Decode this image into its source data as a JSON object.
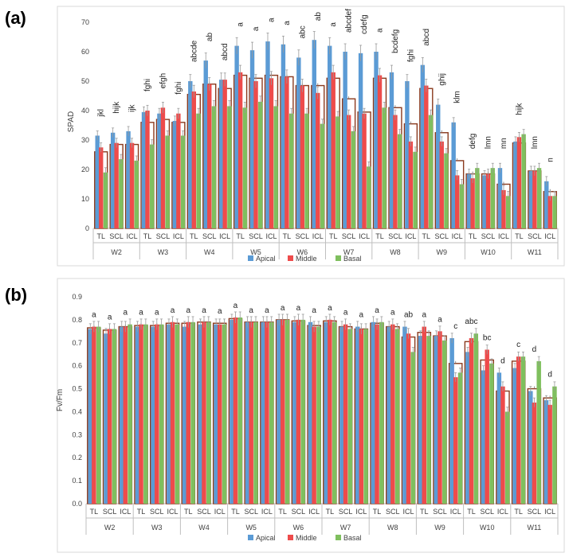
{
  "colors": {
    "apical": "#5b9bd5",
    "middle": "#ee4b4b",
    "basal": "#7fbf5e",
    "mean_box": "#8b3a1e",
    "axis": "#bfbfbf"
  },
  "chart_data": [
    {
      "type": "bar",
      "panel_label": "(a)",
      "ylabel": "SPAD",
      "ylim": [
        0,
        70
      ],
      "yticks": [
        0,
        10,
        20,
        30,
        40,
        50,
        60,
        70
      ],
      "groups": [
        "W2",
        "W3",
        "W4",
        "W5",
        "W6",
        "W7",
        "W8",
        "W9",
        "W10",
        "W11"
      ],
      "subcategories": [
        "TL",
        "SCL",
        "ICL"
      ],
      "legend": [
        "Apical",
        "Middle",
        "Basal"
      ],
      "series": [
        {
          "name": "Apical",
          "values": [
            31.5,
            32.5,
            33.0,
            39.5,
            39.0,
            36.5,
            50.0,
            57.0,
            50.5,
            62.0,
            60.5,
            63.5,
            62.5,
            58.0,
            64.0,
            62.0,
            60.0,
            59.5,
            60.0,
            53.0,
            50.0,
            55.5,
            42.0,
            36.0,
            18.5,
            18.0,
            20.5,
            29.5,
            19.5,
            16.0
          ]
        },
        {
          "name": "Middle",
          "values": [
            27.5,
            29.0,
            29.0,
            40.0,
            41.0,
            39.0,
            46.5,
            49.0,
            50.5,
            53.0,
            50.0,
            51.0,
            51.5,
            48.5,
            46.0,
            53.0,
            38.5,
            39.0,
            52.0,
            38.5,
            29.5,
            48.5,
            29.5,
            18.0,
            17.0,
            18.5,
            13.0,
            31.0,
            19.5,
            11.0
          ]
        },
        {
          "name": "Basal",
          "values": [
            19.0,
            23.5,
            23.0,
            28.5,
            31.5,
            31.5,
            39.0,
            41.5,
            41.5,
            41.0,
            43.0,
            41.5,
            39.0,
            39.0,
            35.5,
            38.0,
            33.0,
            21.0,
            41.0,
            32.0,
            26.0,
            38.5,
            25.5,
            15.0,
            20.5,
            20.5,
            11.0,
            32.0,
            20.5,
            11.0
          ]
        },
        {
          "name": "Mean",
          "values": [
            26.0,
            28.5,
            28.5,
            36.0,
            37.0,
            36.0,
            45.5,
            49.0,
            47.5,
            52.0,
            51.0,
            52.0,
            51.5,
            48.5,
            48.5,
            51.0,
            44.0,
            39.5,
            51.0,
            41.0,
            35.5,
            47.5,
            32.5,
            23.0,
            18.5,
            18.5,
            15.0,
            29.0,
            19.5,
            12.5
          ]
        }
      ],
      "letters": [
        "jkl",
        "hijk",
        "ijk",
        "fghi",
        "efgh",
        "fghi",
        "abcde",
        "ab",
        "abcd",
        "a",
        "a",
        "a",
        "a",
        "abc",
        "ab",
        "a",
        "abcdef",
        "cdefg",
        "a",
        "bcdefg",
        "fghi",
        "abcd",
        "ghij",
        "klm",
        "defg",
        "lmn",
        "mn",
        "hijk",
        "lmn",
        "n"
      ]
    },
    {
      "type": "bar",
      "panel_label": "(b)",
      "ylabel": "Fv/Fm",
      "ylim": [
        0,
        0.9
      ],
      "yticks": [
        0,
        0.1,
        0.2,
        0.3,
        0.4,
        0.5,
        0.6,
        0.7,
        0.8,
        0.9
      ],
      "groups": [
        "W2",
        "W3",
        "W4",
        "W5",
        "W6",
        "W7",
        "W8",
        "W9",
        "W10",
        "W11"
      ],
      "subcategories": [
        "TL",
        "SCL",
        "ICL"
      ],
      "legend": [
        "Apical",
        "Middle",
        "Basal"
      ],
      "series": [
        {
          "name": "Apical",
          "values": [
            0.76,
            0.74,
            0.77,
            0.77,
            0.77,
            0.78,
            0.77,
            0.78,
            0.78,
            0.8,
            0.79,
            0.79,
            0.8,
            0.79,
            0.79,
            0.79,
            0.77,
            0.77,
            0.79,
            0.77,
            0.77,
            0.73,
            0.73,
            0.72,
            0.66,
            0.58,
            0.57,
            0.59,
            0.49,
            0.45
          ]
        },
        {
          "name": "Middle",
          "values": [
            0.77,
            0.76,
            0.77,
            0.78,
            0.78,
            0.79,
            0.79,
            0.79,
            0.78,
            0.81,
            0.79,
            0.79,
            0.8,
            0.8,
            0.77,
            0.8,
            0.78,
            0.76,
            0.78,
            0.78,
            0.74,
            0.77,
            0.75,
            0.55,
            0.72,
            0.67,
            0.51,
            0.64,
            0.44,
            0.43
          ]
        },
        {
          "name": "Basal",
          "values": [
            0.77,
            0.76,
            0.78,
            0.78,
            0.78,
            0.78,
            0.79,
            0.79,
            0.78,
            0.81,
            0.79,
            0.79,
            0.8,
            0.8,
            0.77,
            0.79,
            0.76,
            0.76,
            0.79,
            0.76,
            0.66,
            0.73,
            0.71,
            0.57,
            0.74,
            0.61,
            0.4,
            0.64,
            0.62,
            0.51
          ]
        },
        {
          "name": "Mean",
          "values": [
            0.765,
            0.755,
            0.77,
            0.775,
            0.775,
            0.785,
            0.785,
            0.79,
            0.785,
            0.805,
            0.79,
            0.79,
            0.8,
            0.795,
            0.775,
            0.795,
            0.77,
            0.76,
            0.785,
            0.77,
            0.725,
            0.745,
            0.73,
            0.61,
            0.705,
            0.625,
            0.49,
            0.62,
            0.5,
            0.46
          ]
        }
      ],
      "letters": [
        "a",
        "a",
        "a",
        "a",
        "a",
        "a",
        "a",
        "a",
        "a",
        "a",
        "a",
        "a",
        "a",
        "a",
        "a",
        "a",
        "a",
        "a",
        "a",
        "a",
        "ab",
        "a",
        "a",
        "c",
        "abc",
        "bc",
        "d",
        "c",
        "d",
        "d"
      ]
    }
  ]
}
